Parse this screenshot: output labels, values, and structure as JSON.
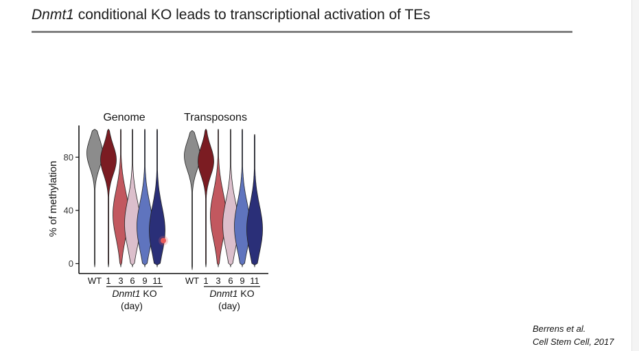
{
  "slide": {
    "title_gene": "Dnmt1",
    "title_rest": " conditional KO leads to transcriptional activation of TEs",
    "citation_line1": "Berrens et al.",
    "citation_line2": "Cell Stem Cell, 2017"
  },
  "colors": {
    "WT": "#8c8c8c",
    "1": "#7b1c22",
    "3": "#c2585f",
    "6": "#dcbfcc",
    "9": "#5f74be",
    "11": "#2a2f78",
    "rule": "#7f7f7f"
  },
  "chart_data": {
    "type": "violin",
    "ylabel": "% of methylation",
    "yticks": [
      0,
      40,
      80
    ],
    "ylim": [
      -2,
      102
    ],
    "group_label_gene": "Dnmt1",
    "group_label_rest": " KO",
    "group_sublabel": "(day)",
    "panels": [
      {
        "title": "Genome",
        "categories": [
          "WT",
          "1",
          "3",
          "6",
          "9",
          "11"
        ],
        "series": [
          {
            "category": "WT",
            "max": 101,
            "min": -1,
            "median": 83,
            "spread": 11
          },
          {
            "category": "1",
            "max": 101,
            "min": -1,
            "median": 78,
            "spread": 11
          },
          {
            "category": "3",
            "max": 101,
            "min": -1,
            "median": 37,
            "spread": 18
          },
          {
            "category": "6",
            "max": 101,
            "min": -1,
            "median": 30,
            "spread": 18
          },
          {
            "category": "9",
            "max": 101,
            "min": -1,
            "median": 28,
            "spread": 18
          },
          {
            "category": "11",
            "max": 101,
            "min": -1,
            "median": 25,
            "spread": 18
          }
        ]
      },
      {
        "title": "Transposons",
        "categories": [
          "WT",
          "1",
          "3",
          "6",
          "9",
          "11"
        ],
        "series": [
          {
            "category": "WT",
            "max": 100,
            "min": -3,
            "median": 81,
            "spread": 11
          },
          {
            "category": "1",
            "max": 101,
            "min": -1,
            "median": 77,
            "spread": 11
          },
          {
            "category": "3",
            "max": 101,
            "min": -1,
            "median": 36,
            "spread": 18
          },
          {
            "category": "6",
            "max": 101,
            "min": -1,
            "median": 29,
            "spread": 18
          },
          {
            "category": "9",
            "max": 101,
            "min": -1,
            "median": 28,
            "spread": 18
          },
          {
            "category": "11",
            "max": 97,
            "min": -1,
            "median": 26,
            "spread": 18
          }
        ]
      }
    ]
  }
}
